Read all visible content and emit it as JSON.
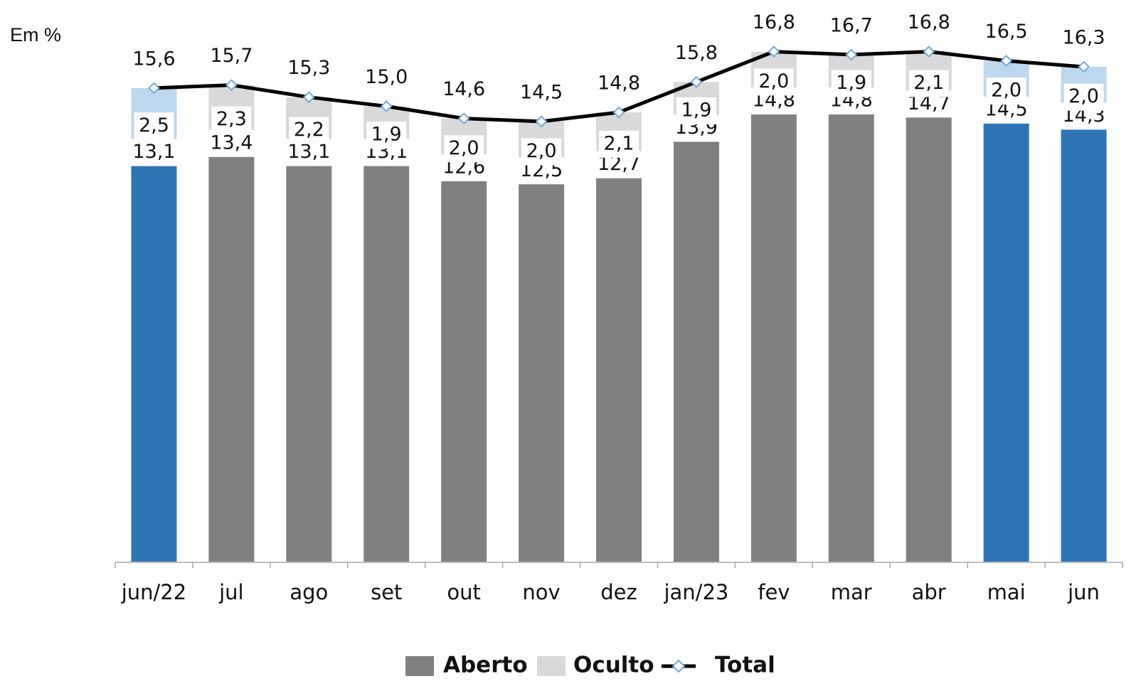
{
  "unit_label": "Em %",
  "colors": {
    "aberto": "#808080",
    "oculto": "#d9d9d9",
    "aberto_highlight": "#2e75b6",
    "oculto_highlight": "#bdd7ee",
    "total_line": "#000000",
    "total_marker_fill": "#ffffff",
    "total_marker_stroke": "#6fa8dc"
  },
  "chart_data": {
    "type": "bar",
    "stacked": true,
    "categories": [
      "jun/22",
      "jul",
      "ago",
      "set",
      "out",
      "nov",
      "dez",
      "jan/23",
      "fev",
      "mar",
      "abr",
      "mai",
      "jun"
    ],
    "highlighted_categories": [
      "jun/22",
      "mai",
      "jun"
    ],
    "series": [
      {
        "name": "Aberto",
        "type": "bar",
        "values": [
          13.1,
          13.4,
          13.1,
          13.1,
          12.6,
          12.5,
          12.7,
          13.9,
          14.8,
          14.8,
          14.7,
          14.5,
          14.3
        ],
        "labels": [
          "13,1",
          "13,4",
          "13,1",
          "13,1",
          "12,6",
          "12,5",
          "12,7",
          "13,9",
          "14,8",
          "14,8",
          "14,7",
          "14,5",
          "14,3"
        ]
      },
      {
        "name": "Oculto",
        "type": "bar",
        "values": [
          2.5,
          2.3,
          2.2,
          1.9,
          2.0,
          2.0,
          2.1,
          1.9,
          2.0,
          1.9,
          2.1,
          2.0,
          2.0
        ],
        "labels": [
          "2,5",
          "2,3",
          "2,2",
          "1,9",
          "2,0",
          "2,0",
          "2,1",
          "1,9",
          "2,0",
          "1,9",
          "2,1",
          "2,0",
          "2,0"
        ]
      },
      {
        "name": "Total",
        "type": "line",
        "values": [
          15.6,
          15.7,
          15.3,
          15.0,
          14.6,
          14.5,
          14.8,
          15.8,
          16.8,
          16.7,
          16.8,
          16.5,
          16.3
        ],
        "labels": [
          "15,6",
          "15,7",
          "15,3",
          "15,0",
          "14,6",
          "14,5",
          "14,8",
          "15,8",
          "16,8",
          "16,7",
          "16,8",
          "16,5",
          "16,3"
        ]
      }
    ],
    "ylim": [
      0,
      17
    ],
    "grid": false,
    "legend_position": "bottom"
  }
}
